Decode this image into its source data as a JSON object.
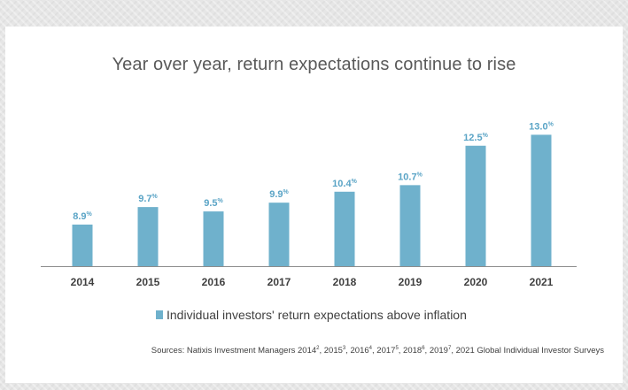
{
  "title": "Year over year, return expectations continue to rise",
  "chart_data": {
    "type": "bar",
    "categories": [
      "2014",
      "2015",
      "2016",
      "2017",
      "2018",
      "2019",
      "2020",
      "2021"
    ],
    "series": [
      {
        "name": "Individual investors' return expectations above inflation",
        "values": [
          8.9,
          9.7,
          9.5,
          9.9,
          10.4,
          10.7,
          12.5,
          13.0
        ]
      }
    ],
    "data_labels": [
      "8.9",
      "9.7",
      "9.5",
      "9.9",
      "10.4",
      "10.7",
      "12.5",
      "13.0"
    ],
    "data_label_suffix": "%",
    "ylim": [
      7.0,
      13.5
    ],
    "grid": false,
    "legend_position": "bottom",
    "bar_color": "#6fb1cc",
    "label_color": "#5aa4c6"
  },
  "legend": {
    "label": "Individual investors' return expectations above inflation"
  },
  "source": {
    "prefix": "Sources: Natixis Investment Managers 2014",
    "parts": [
      {
        "sup": "2",
        "text": ", 2015"
      },
      {
        "sup": "3",
        "text": ", 2016"
      },
      {
        "sup": "4",
        "text": ", 2017"
      },
      {
        "sup": "5",
        "text": ", 2018"
      },
      {
        "sup": "6",
        "text": ", 2019"
      },
      {
        "sup": "7",
        "text": ", 2021 Global Individual Investor Surveys"
      }
    ]
  }
}
